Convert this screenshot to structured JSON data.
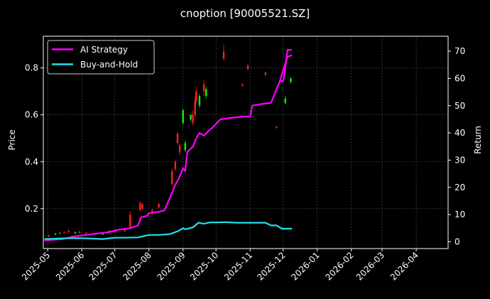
{
  "chart_data": {
    "type": "line",
    "title": "cnoption [90005521.SZ]",
    "ylabel": "Price",
    "y2label": "Return",
    "ylim": [
      0.03,
      0.935
    ],
    "y2lim": [
      -2.5,
      75.5
    ],
    "xlim": [
      "2025-04-27",
      "2026-04-30"
    ],
    "x_ticks": [
      "2025-05",
      "2025-06",
      "2025-07",
      "2025-08",
      "2025-09",
      "2025-10",
      "2025-11",
      "2025-12",
      "2026-01",
      "2026-02",
      "2026-03",
      "2026-04"
    ],
    "y_ticks": [
      0.2,
      0.4,
      0.6,
      0.8
    ],
    "y2_ticks": [
      0,
      10,
      20,
      30,
      40,
      50,
      60,
      70
    ],
    "grid": true,
    "legend_position": "top-left",
    "colors": {
      "background": "#000000",
      "up": "#00ff00",
      "down": "#ff2020",
      "strategy": "#ff00ff",
      "hold": "#22e0e8",
      "grid": "#555555",
      "frame": "#ffffff"
    },
    "series": [
      {
        "name": "AI Strategy",
        "axis": "return",
        "color": "#ff00ff",
        "x": [
          "2025-04-28",
          "2025-05-15",
          "2025-05-25",
          "2025-06-05",
          "2025-06-15",
          "2025-06-25",
          "2025-07-05",
          "2025-07-15",
          "2025-07-22",
          "2025-07-25",
          "2025-07-30",
          "2025-08-01",
          "2025-08-10",
          "2025-08-15",
          "2025-08-20",
          "2025-08-25",
          "2025-08-28",
          "2025-09-01",
          "2025-09-03",
          "2025-09-05",
          "2025-09-10",
          "2025-09-13",
          "2025-09-16",
          "2025-09-20",
          "2025-09-25",
          "2025-09-28",
          "2025-10-05",
          "2025-10-15",
          "2025-10-25",
          "2025-11-01",
          "2025-11-03",
          "2025-11-10",
          "2025-11-20",
          "2025-11-28",
          "2025-12-01",
          "2025-12-05",
          "2025-12-09"
        ],
        "values": [
          0.5,
          1.0,
          2.0,
          2.5,
          3.0,
          3.5,
          4.5,
          5.0,
          6.0,
          9.0,
          9.5,
          10.5,
          11.0,
          11.5,
          16.0,
          21.0,
          23.0,
          27.0,
          26.0,
          33.0,
          35.0,
          38.0,
          40.0,
          39.0,
          41.0,
          42.0,
          45.0,
          45.5,
          46.0,
          46.0,
          50.0,
          50.5,
          51.0,
          59.0,
          63.0,
          68.0,
          68.5
        ],
        "extra": {
          "x": [
            "2025-11-28",
            "2025-12-01",
            "2025-12-02",
            "2025-12-05",
            "2025-12-09"
          ],
          "values": [
            59.0,
            59.0,
            61.0,
            70.5,
            70.5
          ]
        }
      },
      {
        "name": "Buy-and-Hold",
        "axis": "return",
        "color": "#22e0e8",
        "x": [
          "2025-04-28",
          "2025-05-20",
          "2025-06-01",
          "2025-06-20",
          "2025-07-01",
          "2025-07-10",
          "2025-07-22",
          "2025-08-01",
          "2025-08-10",
          "2025-08-20",
          "2025-08-28",
          "2025-09-01",
          "2025-09-03",
          "2025-09-10",
          "2025-09-15",
          "2025-09-20",
          "2025-09-25",
          "2025-10-01",
          "2025-10-10",
          "2025-10-20",
          "2025-11-01",
          "2025-11-15",
          "2025-11-20",
          "2025-11-25",
          "2025-11-30",
          "2025-12-09"
        ],
        "values": [
          1.0,
          1.3,
          1.3,
          1.0,
          1.5,
          1.5,
          1.6,
          2.5,
          2.5,
          2.8,
          4.0,
          5.0,
          4.6,
          5.3,
          7.0,
          6.6,
          7.1,
          7.1,
          7.2,
          7.0,
          7.0,
          7.0,
          6.0,
          6.0,
          4.8,
          4.8
        ]
      }
    ],
    "candles": [
      {
        "x": "2025-05-02",
        "o": 0.086,
        "c": 0.082,
        "h": 0.09,
        "l": 0.078
      },
      {
        "x": "2025-05-08",
        "o": 0.09,
        "c": 0.094,
        "h": 0.097,
        "l": 0.087
      },
      {
        "x": "2025-05-12",
        "o": 0.098,
        "c": 0.092,
        "h": 0.1,
        "l": 0.09
      },
      {
        "x": "2025-05-16",
        "o": 0.1,
        "c": 0.096,
        "h": 0.104,
        "l": 0.095
      },
      {
        "x": "2025-05-20",
        "o": 0.106,
        "c": 0.1,
        "h": 0.112,
        "l": 0.098
      },
      {
        "x": "2025-05-26",
        "o": 0.095,
        "c": 0.1,
        "h": 0.103,
        "l": 0.093
      },
      {
        "x": "2025-05-30",
        "o": 0.102,
        "c": 0.097,
        "h": 0.106,
        "l": 0.094
      },
      {
        "x": "2025-06-05",
        "o": 0.098,
        "c": 0.094,
        "h": 0.102,
        "l": 0.09
      },
      {
        "x": "2025-06-12",
        "o": 0.095,
        "c": 0.092,
        "h": 0.098,
        "l": 0.09
      },
      {
        "x": "2025-06-20",
        "o": 0.09,
        "c": 0.093,
        "h": 0.096,
        "l": 0.088
      },
      {
        "x": "2025-06-26",
        "o": 0.1,
        "c": 0.105,
        "h": 0.108,
        "l": 0.098
      },
      {
        "x": "2025-07-01",
        "o": 0.105,
        "c": 0.1,
        "h": 0.108,
        "l": 0.098
      },
      {
        "x": "2025-07-10",
        "o": 0.112,
        "c": 0.104,
        "h": 0.116,
        "l": 0.102
      },
      {
        "x": "2025-07-15",
        "o": 0.175,
        "c": 0.12,
        "h": 0.19,
        "l": 0.115
      },
      {
        "x": "2025-07-24",
        "o": 0.225,
        "c": 0.195,
        "h": 0.232,
        "l": 0.19
      },
      {
        "x": "2025-07-26",
        "o": 0.22,
        "c": 0.2,
        "h": 0.225,
        "l": 0.195
      },
      {
        "x": "2025-08-04",
        "o": 0.195,
        "c": 0.18,
        "h": 0.2,
        "l": 0.175
      },
      {
        "x": "2025-08-10",
        "o": 0.22,
        "c": 0.205,
        "h": 0.225,
        "l": 0.2
      },
      {
        "x": "2025-08-22",
        "o": 0.36,
        "c": 0.305,
        "h": 0.37,
        "l": 0.3
      },
      {
        "x": "2025-08-25",
        "o": 0.4,
        "c": 0.37,
        "h": 0.41,
        "l": 0.36
      },
      {
        "x": "2025-08-27",
        "o": 0.52,
        "c": 0.48,
        "h": 0.525,
        "l": 0.47
      },
      {
        "x": "2025-08-29",
        "o": 0.47,
        "c": 0.44,
        "h": 0.48,
        "l": 0.43
      },
      {
        "x": "2025-09-01",
        "o": 0.565,
        "c": 0.62,
        "h": 0.625,
        "l": 0.56
      },
      {
        "x": "2025-09-03",
        "o": 0.45,
        "c": 0.48,
        "h": 0.49,
        "l": 0.44
      },
      {
        "x": "2025-09-08",
        "o": 0.58,
        "c": 0.6,
        "h": 0.6,
        "l": 0.575
      },
      {
        "x": "2025-09-10",
        "o": 0.6,
        "c": 0.565,
        "h": 0.62,
        "l": 0.555
      },
      {
        "x": "2025-09-12",
        "o": 0.66,
        "c": 0.6,
        "h": 0.68,
        "l": 0.59
      },
      {
        "x": "2025-09-13",
        "o": 0.7,
        "c": 0.66,
        "h": 0.72,
        "l": 0.65
      },
      {
        "x": "2025-09-16",
        "o": 0.64,
        "c": 0.68,
        "h": 0.69,
        "l": 0.63
      },
      {
        "x": "2025-09-20",
        "o": 0.73,
        "c": 0.7,
        "h": 0.75,
        "l": 0.68
      },
      {
        "x": "2025-09-22",
        "o": 0.68,
        "c": 0.71,
        "h": 0.72,
        "l": 0.67
      },
      {
        "x": "2025-10-08",
        "o": 0.87,
        "c": 0.84,
        "h": 0.9,
        "l": 0.83
      },
      {
        "x": "2025-10-25",
        "o": 0.73,
        "c": 0.725,
        "h": 0.735,
        "l": 0.72
      },
      {
        "x": "2025-10-30",
        "o": 0.81,
        "c": 0.795,
        "h": 0.815,
        "l": 0.79
      },
      {
        "x": "2025-11-15",
        "o": 0.78,
        "c": 0.77,
        "h": 0.785,
        "l": 0.765
      },
      {
        "x": "2025-11-25",
        "o": 0.55,
        "c": 0.545,
        "h": 0.552,
        "l": 0.54
      },
      {
        "x": "2025-12-03",
        "o": 0.65,
        "c": 0.67,
        "h": 0.68,
        "l": 0.645
      },
      {
        "x": "2025-12-08",
        "o": 0.74,
        "c": 0.755,
        "h": 0.76,
        "l": 0.735
      }
    ]
  }
}
